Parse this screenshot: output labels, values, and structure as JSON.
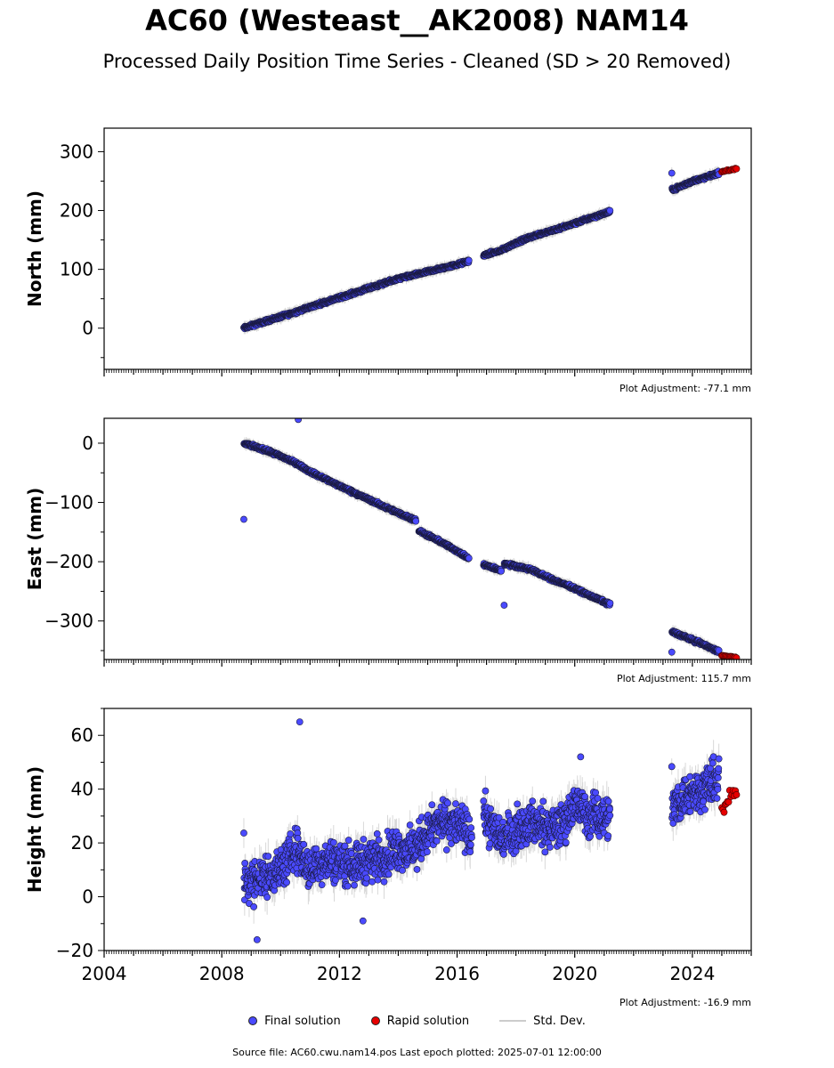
{
  "title": "AC60 (Westeast__AK2008) NAM14",
  "subtitle": "Processed Daily Position Time Series - Cleaned (SD > 20 Removed)",
  "colors": {
    "final": "#4a4aff",
    "rapid": "#e60000",
    "stddev": "#aaaaaa"
  },
  "legend": {
    "final": "Final solution",
    "rapid": "Rapid solution",
    "stddev": "Std. Dev."
  },
  "footer": "Source file: AC60.cwu.nam14.pos  Last epoch plotted: 2025-07-01 12:00:00",
  "chart_data": [
    {
      "type": "scatter",
      "ylabel": "North (mm)",
      "adjustment": "Plot Adjustment: -77.1 mm",
      "xlim": [
        2004,
        2026
      ],
      "ylim": [
        -70,
        340
      ],
      "yticks": [
        0,
        100,
        200,
        300
      ],
      "segments": [
        {
          "x": [
            2008.75,
            2009.5,
            2010.3,
            2011.0,
            2012.0,
            2013.0,
            2014.0,
            2015.0,
            2015.5,
            2016.0,
            2016.4
          ],
          "y": [
            0,
            12,
            24,
            36,
            52,
            68,
            84,
            96,
            102,
            108,
            114
          ]
        },
        {
          "x": [
            2016.9,
            2017.5,
            2018.0,
            2018.5,
            2019.0,
            2019.5,
            2020.0,
            2020.5,
            2021.2
          ],
          "y": [
            124,
            132,
            145,
            155,
            163,
            170,
            178,
            187,
            198
          ]
        },
        {
          "x": [
            2023.3,
            2023.7,
            2024.0,
            2024.5,
            2024.9
          ],
          "y": [
            235,
            243,
            250,
            257,
            264
          ]
        }
      ],
      "rapid": {
        "x": [
          2025.0,
          2025.5
        ],
        "y": [
          266,
          271
        ]
      }
    },
    {
      "type": "scatter",
      "ylabel": "East (mm)",
      "adjustment": "Plot Adjustment: 115.7 mm",
      "xlim": [
        2004,
        2026
      ],
      "ylim": [
        -365,
        42
      ],
      "yticks": [
        0,
        -100,
        -200,
        -300
      ],
      "segments": [
        {
          "x": [
            2008.75,
            2009.5,
            2010.0,
            2010.5,
            2011.0,
            2012.0,
            2013.0,
            2014.0,
            2014.6
          ],
          "y": [
            0,
            -12,
            -22,
            -33,
            -48,
            -72,
            -95,
            -118,
            -130
          ]
        },
        {
          "x": [
            2014.7,
            2015.5,
            2016.0,
            2016.4
          ],
          "y": [
            -148,
            -168,
            -182,
            -195
          ]
        },
        {
          "x": [
            2016.9,
            2017.5
          ],
          "y": [
            -205,
            -215
          ]
        },
        {
          "x": [
            2017.6,
            2018.5,
            2019.0,
            2019.5,
            2020.0,
            2020.5,
            2021.2
          ],
          "y": [
            -203,
            -213,
            -225,
            -235,
            -245,
            -257,
            -272
          ]
        },
        {
          "x": [
            2023.3,
            2023.8,
            2024.3,
            2024.9
          ],
          "y": [
            -318,
            -328,
            -338,
            -352
          ]
        }
      ],
      "outliers": {
        "x": [
          2010.6
        ],
        "y": [
          40
        ]
      },
      "rapid": {
        "x": [
          2025.0,
          2025.5
        ],
        "y": [
          -358,
          -362
        ]
      }
    },
    {
      "type": "scatter",
      "ylabel": "Height (mm)",
      "adjustment": "Plot Adjustment: -16.9 mm",
      "xlim": [
        2004,
        2026
      ],
      "ylim": [
        -20,
        70
      ],
      "yticks": [
        -20,
        0,
        20,
        40,
        60
      ],
      "xticks": [
        2004,
        2008,
        2012,
        2016,
        2020,
        2024
      ],
      "segments": [
        {
          "x": [
            2008.75,
            2009.5,
            2010.0,
            2010.5,
            2011.0,
            2011.5,
            2012.0,
            2012.5,
            2013.0,
            2013.5,
            2014.0,
            2014.5,
            2015.0,
            2015.5,
            2016.0,
            2016.5
          ],
          "y": [
            5,
            8,
            10,
            18,
            10,
            14,
            13,
            12,
            14,
            15,
            18,
            17,
            24,
            28,
            27,
            22
          ]
        },
        {
          "x": [
            2016.9,
            2017.5,
            2018.0,
            2018.5,
            2019.0,
            2019.5,
            2020.0,
            2020.5,
            2021.2
          ],
          "y": [
            30,
            22,
            25,
            28,
            25,
            26,
            34,
            30,
            30
          ]
        },
        {
          "x": [
            2023.3,
            2023.8,
            2024.3,
            2024.9
          ],
          "y": [
            33,
            38,
            40,
            44
          ]
        }
      ],
      "outliers": {
        "x": [
          2010.65,
          2009.2,
          2012.8,
          2020.2
        ],
        "y": [
          65,
          -16,
          -9,
          52
        ]
      },
      "rapid": {
        "x": [
          2025.0,
          2025.5
        ],
        "y": [
          32,
          39
        ]
      }
    }
  ]
}
